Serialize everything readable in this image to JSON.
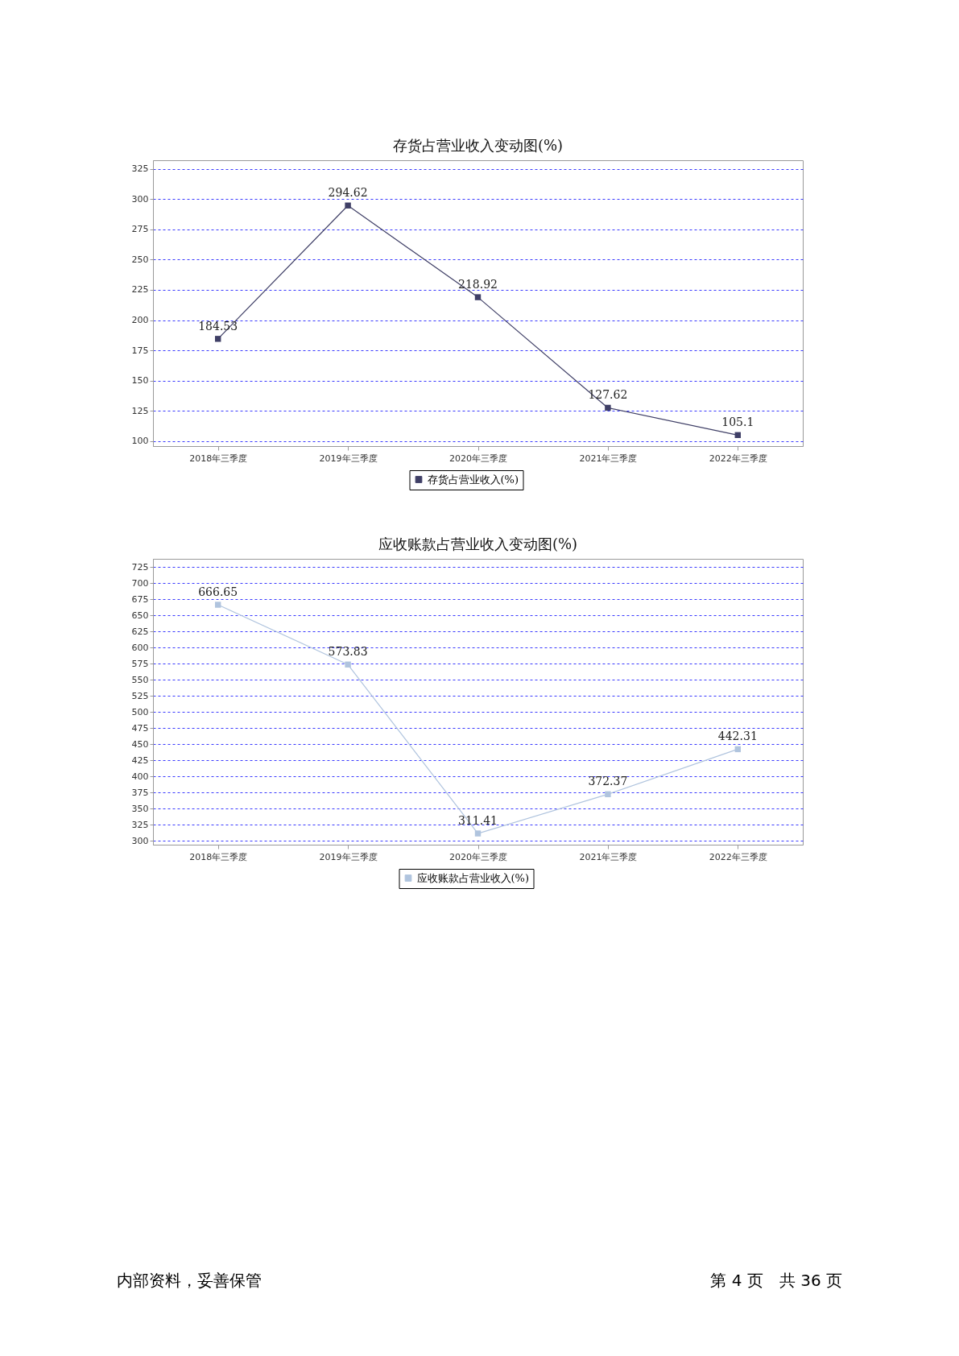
{
  "chart_data": [
    {
      "type": "line",
      "title": "存货占营业收入变动图(%)",
      "categories": [
        "2018年三季度",
        "2019年三季度",
        "2020年三季度",
        "2021年三季度",
        "2022年三季度"
      ],
      "series": [
        {
          "name": "存货占营业收入(%)",
          "color": "#3f3f66",
          "values": [
            184.53,
            294.62,
            218.92,
            127.62,
            105.1
          ]
        }
      ],
      "ylim": [
        96,
        332
      ],
      "yticks": [
        100,
        125,
        150,
        175,
        200,
        225,
        250,
        275,
        300,
        325
      ],
      "grid": "y",
      "legend": "bottom",
      "marker": "square",
      "data_labels": true
    },
    {
      "type": "line",
      "title": "应收账款占营业收入变动图(%)",
      "categories": [
        "2018年三季度",
        "2019年三季度",
        "2020年三季度",
        "2021年三季度",
        "2022年三季度"
      ],
      "series": [
        {
          "name": "应收账款占营业收入(%)",
          "color": "#b0c4de",
          "values": [
            666.65,
            573.83,
            311.41,
            372.37,
            442.31
          ]
        }
      ],
      "ylim": [
        294,
        738
      ],
      "yticks": [
        300,
        325,
        350,
        375,
        400,
        425,
        450,
        475,
        500,
        525,
        550,
        575,
        600,
        625,
        650,
        675,
        700,
        725
      ],
      "grid": "y",
      "legend": "bottom",
      "marker": "square",
      "data_labels": true,
      "annotations": [
        "内部资料，妥善保管",
        "第 4 页　共 36 页"
      ]
    }
  ]
}
